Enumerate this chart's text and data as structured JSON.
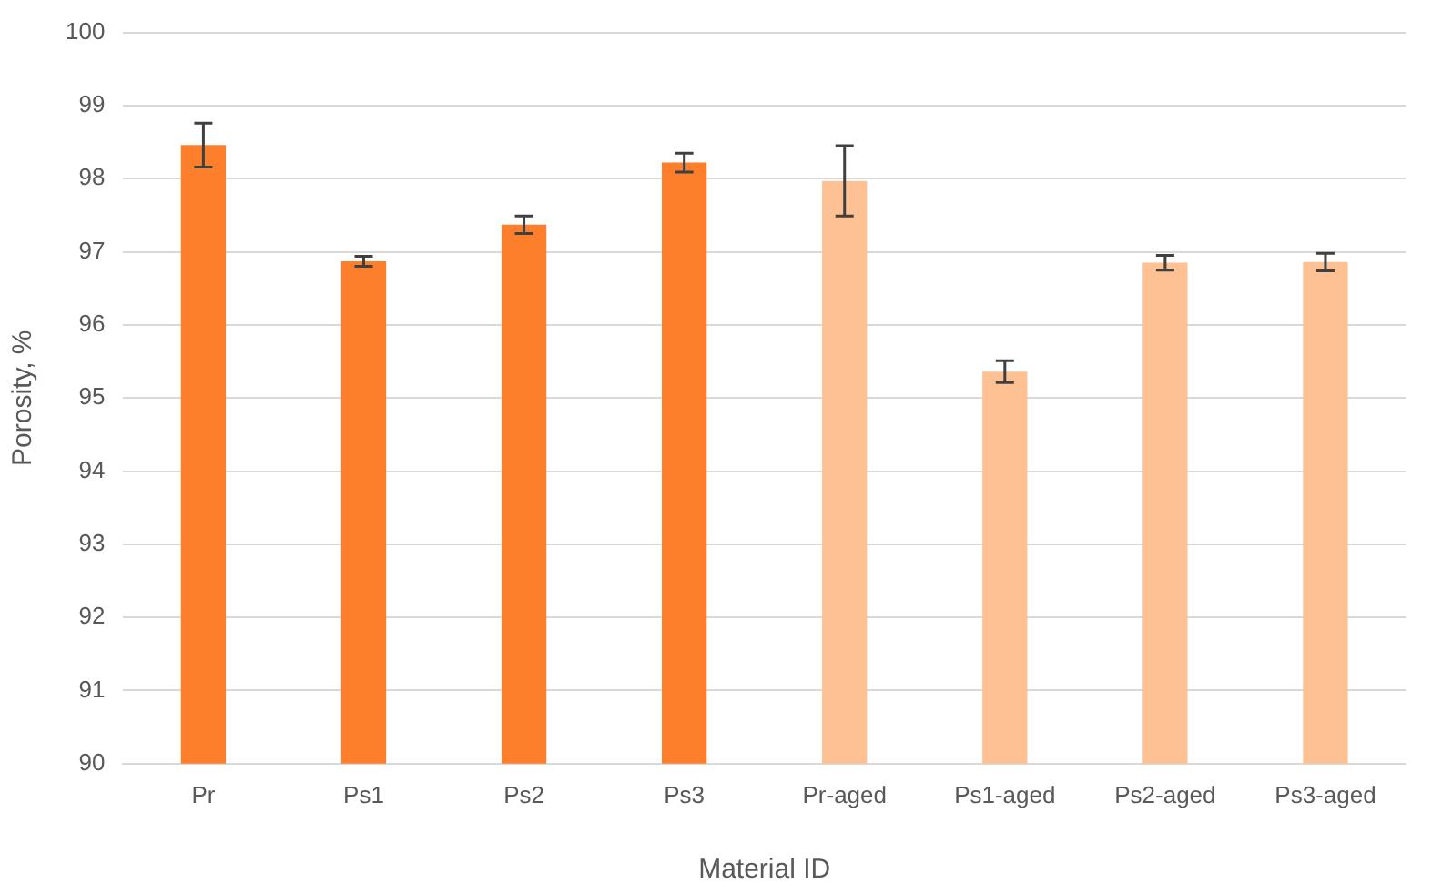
{
  "chart_data": {
    "type": "bar",
    "xlabel": "Material ID",
    "ylabel": "Porosity, %",
    "categories": [
      "Pr",
      "Ps1",
      "Ps2",
      "Ps3",
      "Pr-aged",
      "Ps1-aged",
      "Ps2-aged",
      "Ps3-aged"
    ],
    "values": [
      98.46,
      96.87,
      97.37,
      98.22,
      97.97,
      95.36,
      96.85,
      96.86
    ],
    "errors": [
      0.3,
      0.07,
      0.12,
      0.13,
      0.48,
      0.15,
      0.1,
      0.12
    ],
    "colors": [
      "#fd7f2c",
      "#fd7f2c",
      "#fd7f2c",
      "#fd7f2c",
      "#fdc193",
      "#fdc193",
      "#fdc193",
      "#fdc193"
    ],
    "ylim": [
      90,
      100
    ],
    "yticks": [
      90,
      91,
      92,
      93,
      94,
      95,
      96,
      97,
      98,
      99,
      100
    ],
    "grid": "y"
  }
}
